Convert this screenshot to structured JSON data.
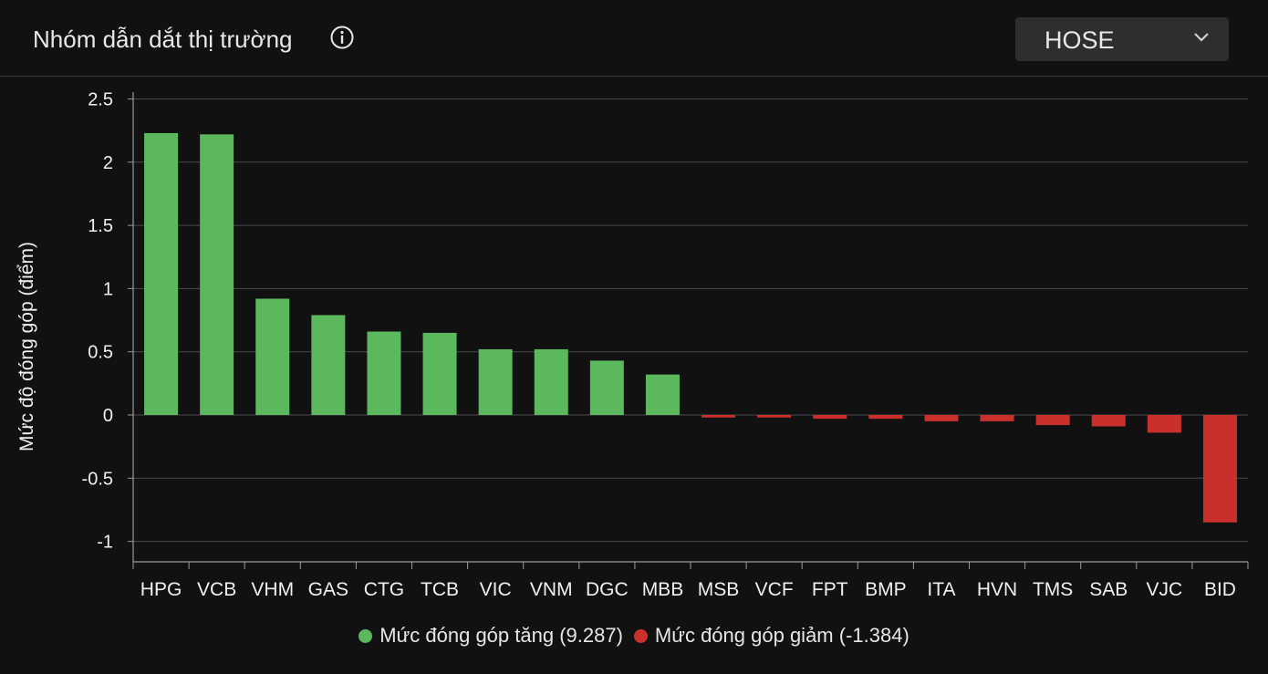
{
  "header": {
    "title": "Nhóm dẫn dắt thị trường",
    "info_icon": "info-circle-icon",
    "exchange_select": {
      "value": "HOSE",
      "icon": "chevron-down-icon"
    }
  },
  "colors": {
    "positive": "#5cb85c",
    "negative": "#c9302c",
    "background": "#111112",
    "grid": "#4a4a4d"
  },
  "chart_data": {
    "type": "bar",
    "ylabel": "Mức độ đóng góp (điểm)",
    "xlabel": "",
    "ylim": [
      -1.15,
      2.55
    ],
    "yticks": [
      2.5,
      2,
      1.5,
      1,
      0.5,
      0,
      -0.5,
      -1
    ],
    "ytick_labels": [
      "2.5",
      "2",
      "1.5",
      "1",
      "0.5",
      "0",
      "-0.5",
      "-1"
    ],
    "grid": true,
    "legend_position": "bottom",
    "categories": [
      "HPG",
      "VCB",
      "VHM",
      "GAS",
      "CTG",
      "TCB",
      "VIC",
      "VNM",
      "DGC",
      "MBB",
      "MSB",
      "VCF",
      "FPT",
      "BMP",
      "ITA",
      "HVN",
      "TMS",
      "SAB",
      "VJC",
      "BID"
    ],
    "values": [
      2.23,
      2.22,
      0.92,
      0.79,
      0.66,
      0.65,
      0.52,
      0.52,
      0.43,
      0.32,
      -0.02,
      -0.02,
      -0.03,
      -0.03,
      -0.05,
      -0.05,
      -0.08,
      -0.09,
      -0.14,
      -0.85
    ],
    "series": [
      {
        "name": "Mức đóng góp tăng (9.287)",
        "color": "#5cb85c"
      },
      {
        "name": "Mức đóng góp giảm (-1.384)",
        "color": "#c9302c"
      }
    ]
  }
}
